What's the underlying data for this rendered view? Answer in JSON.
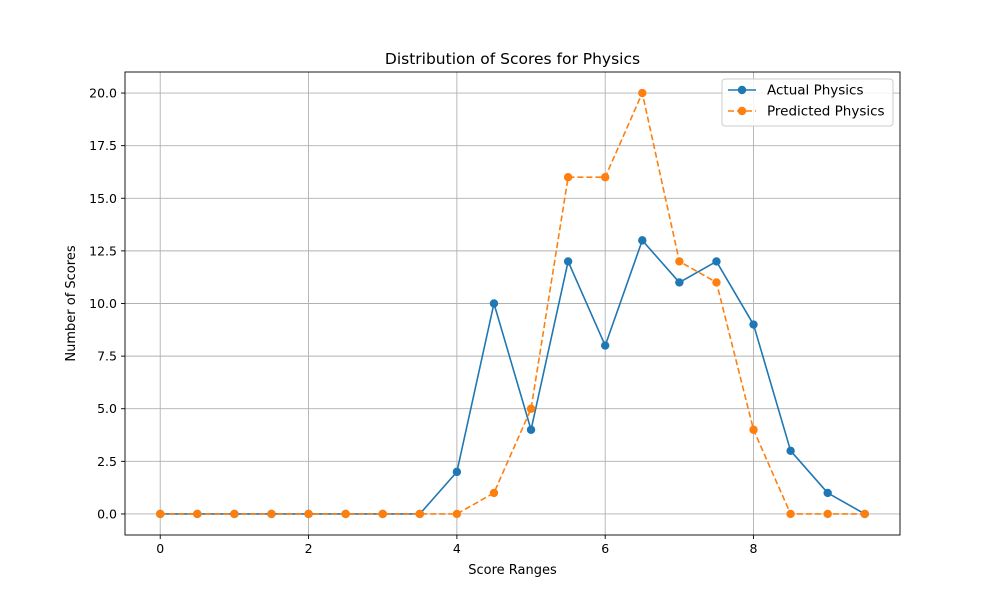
{
  "chart_data": {
    "type": "line",
    "title": "Distribution of Scores for Physics",
    "xlabel": "Score Ranges",
    "ylabel": "Number of Scores",
    "xlim": [
      -0.475,
      9.975
    ],
    "ylim": [
      -1.0,
      21.0
    ],
    "xticks": [
      0,
      2,
      4,
      6,
      8
    ],
    "yticks": [
      0.0,
      2.5,
      5.0,
      7.5,
      10.0,
      12.5,
      15.0,
      17.5,
      20.0
    ],
    "xtick_labels": [
      "0",
      "2",
      "4",
      "6",
      "8"
    ],
    "ytick_labels": [
      "0.0",
      "2.5",
      "5.0",
      "7.5",
      "10.0",
      "12.5",
      "15.0",
      "17.5",
      "20.0"
    ],
    "grid": true,
    "legend_position": "upper-right",
    "x": [
      0,
      0.5,
      1,
      1.5,
      2,
      2.5,
      3,
      3.5,
      4,
      4.5,
      5,
      5.5,
      6,
      6.5,
      7,
      7.5,
      8,
      8.5,
      9,
      9.5
    ],
    "series": [
      {
        "name": "Actual Physics",
        "color": "#1f77b4",
        "line_style": "solid",
        "marker": "circle",
        "values": [
          0,
          0,
          0,
          0,
          0,
          0,
          0,
          0,
          2,
          10,
          4,
          12,
          8,
          13,
          11,
          12,
          9,
          3,
          1,
          0
        ]
      },
      {
        "name": "Predicted Physics",
        "color": "#ff7f0e",
        "line_style": "dashed",
        "marker": "circle",
        "values": [
          0,
          0,
          0,
          0,
          0,
          0,
          0,
          0,
          0,
          1,
          5,
          16,
          16,
          20,
          12,
          11,
          4,
          0,
          0,
          0
        ]
      }
    ]
  }
}
